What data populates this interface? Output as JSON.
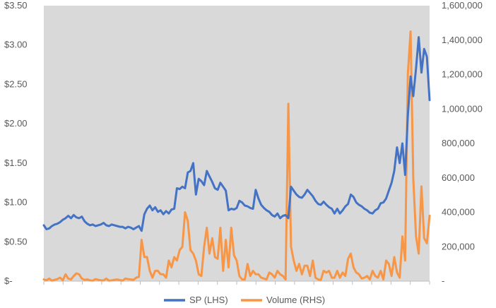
{
  "chart_data": {
    "type": "line",
    "title": "",
    "xlabel": "",
    "ylabel": "",
    "grid": false,
    "legend": "bottom",
    "background": "#d9d9d9",
    "y_left": {
      "range": [
        0,
        3.5
      ],
      "ticks": [
        0,
        0.5,
        1.0,
        1.5,
        2.0,
        2.5,
        3.0,
        3.5
      ],
      "tick_labels": [
        "$-",
        "$0.50",
        "$1.00",
        "$1.50",
        "$2.00",
        "$2.50",
        "$3.00",
        "$3.50"
      ]
    },
    "y_right": {
      "range": [
        0,
        1600000
      ],
      "ticks": [
        0,
        200000,
        400000,
        600000,
        800000,
        1000000,
        1200000,
        1400000,
        1600000
      ],
      "tick_labels": [
        "-",
        "200,000",
        "400,000",
        "600,000",
        "800,000",
        "1,000,000",
        "1,200,000",
        "1,400,000",
        "1,600,000"
      ]
    },
    "x_categories": 20,
    "series": [
      {
        "name": "SP (LHS)",
        "axis": "left",
        "color": "#4472c4",
        "values": [
          0.71,
          0.66,
          0.67,
          0.7,
          0.72,
          0.73,
          0.75,
          0.78,
          0.8,
          0.83,
          0.8,
          0.84,
          0.81,
          0.8,
          0.82,
          0.76,
          0.73,
          0.71,
          0.72,
          0.7,
          0.71,
          0.72,
          0.74,
          0.71,
          0.7,
          0.72,
          0.71,
          0.7,
          0.69,
          0.69,
          0.67,
          0.69,
          0.68,
          0.66,
          0.68,
          0.7,
          0.64,
          0.85,
          0.92,
          0.96,
          0.9,
          0.94,
          0.88,
          0.9,
          0.85,
          0.89,
          0.86,
          0.91,
          0.92,
          1.18,
          1.17,
          1.2,
          1.18,
          1.38,
          1.4,
          1.5,
          1.1,
          1.3,
          1.27,
          1.22,
          1.4,
          1.33,
          1.26,
          1.18,
          1.16,
          1.25,
          1.2,
          1.15,
          0.9,
          0.92,
          0.91,
          0.93,
          1.02,
          1.0,
          0.96,
          0.95,
          0.93,
          0.92,
          1.16,
          1.05,
          0.97,
          0.93,
          0.9,
          0.88,
          0.84,
          0.82,
          0.86,
          0.8,
          0.83,
          0.84,
          0.8,
          1.2,
          1.15,
          1.1,
          1.07,
          1.06,
          1.1,
          1.16,
          1.12,
          1.08,
          1.02,
          0.98,
          0.97,
          1.01,
          0.97,
          0.94,
          0.92,
          0.86,
          0.92,
          0.86,
          0.9,
          0.95,
          0.98,
          1.1,
          1.07,
          1.0,
          0.97,
          0.95,
          0.92,
          0.9,
          0.87,
          0.86,
          0.9,
          0.92,
          0.99,
          1.0,
          1.05,
          1.15,
          1.25,
          1.4,
          1.7,
          1.5,
          1.75,
          1.35,
          2.1,
          2.6,
          2.35,
          2.7,
          3.1,
          2.65,
          2.95,
          2.85,
          2.3
        ]
      },
      {
        "name": "Volume (RHS)",
        "axis": "right",
        "color": "#f79646",
        "values": [
          10000,
          5000,
          15000,
          3000,
          8000,
          12000,
          20000,
          5000,
          40000,
          15000,
          10000,
          30000,
          45000,
          40000,
          15000,
          8000,
          10000,
          5000,
          3000,
          12000,
          8000,
          5000,
          4000,
          15000,
          3000,
          5000,
          8000,
          10000,
          6000,
          3000,
          15000,
          12000,
          10000,
          8000,
          20000,
          25000,
          240000,
          140000,
          140000,
          60000,
          20000,
          60000,
          60000,
          40000,
          40000,
          20000,
          120000,
          80000,
          140000,
          120000,
          180000,
          200000,
          400000,
          350000,
          180000,
          160000,
          120000,
          40000,
          30000,
          200000,
          310000,
          160000,
          250000,
          140000,
          130000,
          310000,
          60000,
          240000,
          80000,
          310000,
          150000,
          120000,
          30000,
          10000,
          10000,
          100000,
          30000,
          60000,
          40000,
          40000,
          20000,
          15000,
          10000,
          50000,
          40000,
          20000,
          60000,
          40000,
          30000,
          10000,
          1030000,
          200000,
          120000,
          60000,
          100000,
          40000,
          90000,
          90000,
          30000,
          120000,
          20000,
          10000,
          8000,
          60000,
          50000,
          60000,
          20000,
          20000,
          60000,
          20000,
          50000,
          30000,
          130000,
          160000,
          80000,
          50000,
          40000,
          15000,
          20000,
          30000,
          10000,
          60000,
          30000,
          20000,
          60000,
          10000,
          120000,
          100000,
          30000,
          140000,
          50000,
          20000,
          260000,
          120000,
          1200000,
          1450000,
          600000,
          260000,
          160000,
          550000,
          250000,
          220000,
          380000
        ]
      }
    ]
  }
}
